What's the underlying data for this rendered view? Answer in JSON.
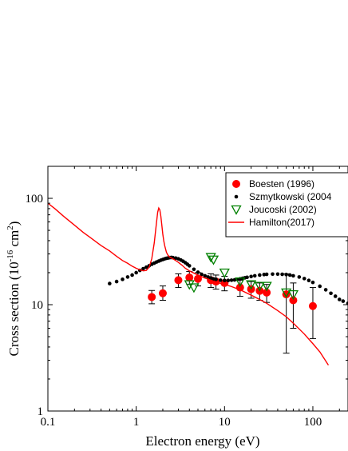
{
  "chart_data": {
    "type": "scatter",
    "xlabel": "Electron energy (eV)",
    "ylabel_prefix": "Cross section (10",
    "ylabel_exp1": "-16",
    "ylabel_mid": " cm",
    "ylabel_exp2": "2",
    "ylabel_suffix": ")",
    "xscale": "log",
    "yscale": "log",
    "xlim": [
      0.1,
      250
    ],
    "ylim": [
      1,
      200
    ],
    "xticks": [
      {
        "value": 0.1,
        "label": "0.1"
      },
      {
        "value": 1,
        "label": "1"
      },
      {
        "value": 10,
        "label": "10"
      },
      {
        "value": 100,
        "label": "100"
      }
    ],
    "yticks": [
      {
        "value": 1,
        "label": "1"
      },
      {
        "value": 10,
        "label": "10"
      },
      {
        "value": 100,
        "label": "100"
      }
    ],
    "legend_position": "top-right",
    "series": [
      {
        "name": "Boesten (1996)",
        "kind": "marker-circle-errorbar",
        "color": "#ff0000",
        "x": [
          1.5,
          2,
          3,
          4,
          5,
          7,
          8,
          10,
          15,
          20,
          25,
          30,
          50,
          60,
          100
        ],
        "y": [
          11.8,
          12.8,
          17.0,
          18.0,
          17.5,
          17.0,
          16.5,
          16.0,
          14.5,
          14.0,
          13.5,
          13.0,
          12.5,
          11.0,
          9.7
        ],
        "yerr_low": [
          10.2,
          11.0,
          14.5,
          15.5,
          15.0,
          14.5,
          14.0,
          13.5,
          12.0,
          11.5,
          11.0,
          10.5,
          3.5,
          6.0,
          4.8
        ],
        "yerr_high": [
          13.6,
          15.0,
          19.5,
          20.5,
          20.0,
          19.5,
          19.0,
          18.5,
          17.0,
          16.5,
          16.0,
          15.5,
          19.5,
          16.0,
          14.5
        ]
      },
      {
        "name": "Szmytkowski (2004",
        "kind": "marker-dot",
        "color": "#000000",
        "x": [
          0.5,
          0.6,
          0.7,
          0.8,
          0.9,
          1.0,
          1.1,
          1.2,
          1.3,
          1.4,
          1.5,
          1.6,
          1.7,
          1.8,
          1.9,
          2.0,
          2.1,
          2.2,
          2.3,
          2.4,
          2.5,
          2.6,
          2.8,
          3.0,
          3.2,
          3.4,
          3.6,
          3.8,
          4.0,
          4.5,
          5.0,
          5.5,
          6.0,
          6.5,
          7.0,
          7.5,
          8.0,
          9.0,
          10,
          11,
          12,
          13,
          14,
          15,
          16,
          17,
          18,
          20,
          22,
          25,
          28,
          30,
          35,
          40,
          45,
          50,
          55,
          60,
          70,
          80,
          90,
          100,
          120,
          140,
          160,
          180,
          200,
          220,
          250
        ],
        "y": [
          15.8,
          16.5,
          17.3,
          18.2,
          19.0,
          20.0,
          21.0,
          21.8,
          22.5,
          23.2,
          24.0,
          24.6,
          25.2,
          25.7,
          26.2,
          26.6,
          27.0,
          27.3,
          27.5,
          27.7,
          27.8,
          27.7,
          27.4,
          27.0,
          26.3,
          25.6,
          24.8,
          24.0,
          23.2,
          21.5,
          20.2,
          19.3,
          18.7,
          18.2,
          17.8,
          17.5,
          17.3,
          17.0,
          16.9,
          16.9,
          17.0,
          17.1,
          17.3,
          17.5,
          17.7,
          17.9,
          18.1,
          18.4,
          18.7,
          19.0,
          19.2,
          19.3,
          19.4,
          19.4,
          19.3,
          19.2,
          19.0,
          18.7,
          18.2,
          17.6,
          16.9,
          16.2,
          14.9,
          13.8,
          12.8,
          12.0,
          11.2,
          10.8,
          10.3
        ]
      },
      {
        "name": "Joucoski (2002)",
        "kind": "marker-triangle-down-open",
        "color": "#008000",
        "x": [
          4,
          4.5,
          7,
          7.5,
          10,
          15,
          20,
          25,
          30,
          50,
          60
        ],
        "y": [
          15.5,
          14.5,
          28.0,
          26.5,
          20.0,
          16.5,
          15.5,
          15.0,
          15.0,
          13.0,
          12.5
        ]
      },
      {
        "name": "Hamilton(2017)",
        "kind": "line",
        "color": "#ff0000",
        "x": [
          0.1,
          0.12,
          0.15,
          0.2,
          0.25,
          0.3,
          0.4,
          0.5,
          0.6,
          0.7,
          0.8,
          0.9,
          1.0,
          1.1,
          1.2,
          1.3,
          1.4,
          1.5,
          1.6,
          1.7,
          1.75,
          1.8,
          1.85,
          1.9,
          1.95,
          2.0,
          2.05,
          2.1,
          2.2,
          2.3,
          2.4,
          2.5,
          2.6,
          2.8,
          3.0,
          3.3,
          3.6,
          4.0,
          4.5,
          5.0,
          6.0,
          7.0,
          8.0,
          10,
          12,
          15,
          20,
          25,
          30,
          40,
          50,
          60,
          80,
          100,
          120,
          150
        ],
        "y": [
          90.0,
          80.0,
          68.0,
          56.0,
          48.0,
          43.0,
          36.0,
          32.0,
          28.5,
          26.0,
          24.5,
          23.0,
          22.0,
          21.3,
          20.8,
          21.0,
          22.5,
          27.0,
          38.0,
          60.0,
          74.0,
          81.0,
          78.0,
          68.0,
          56.0,
          46.0,
          40.0,
          36.0,
          31.0,
          29.0,
          28.0,
          27.5,
          27.0,
          26.0,
          25.0,
          23.5,
          22.0,
          20.8,
          19.8,
          19.0,
          17.8,
          17.0,
          16.3,
          15.5,
          14.8,
          13.8,
          12.3,
          11.2,
          10.3,
          8.8,
          7.7,
          6.7,
          5.3,
          4.3,
          3.6,
          2.7
        ]
      }
    ]
  }
}
